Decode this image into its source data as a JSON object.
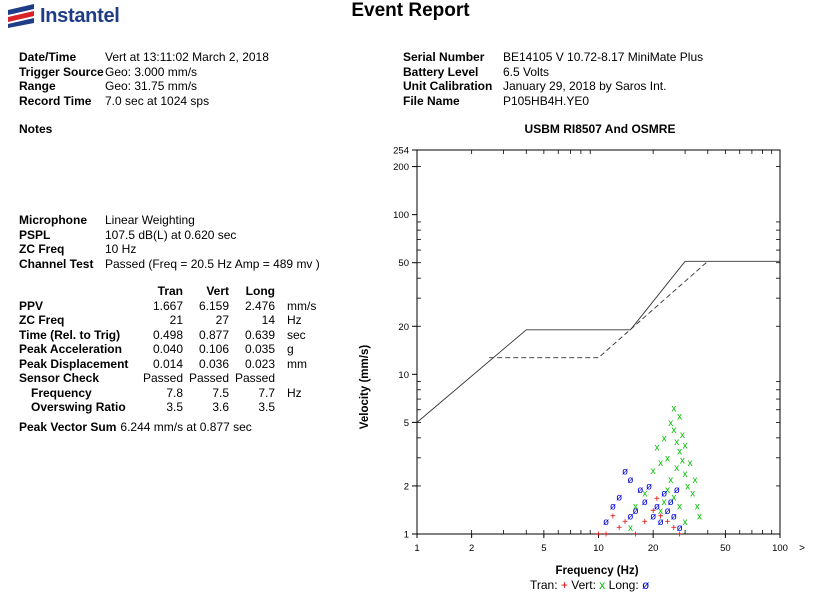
{
  "header": {
    "logo_text": "Instantel",
    "title": "Event Report"
  },
  "left_info": [
    {
      "label": "Date/Time",
      "value": "Vert at 13:11:02 March 2, 2018"
    },
    {
      "label": "Trigger Source",
      "value": "Geo: 3.000 mm/s"
    },
    {
      "label": "Range",
      "value": "Geo: 31.75 mm/s"
    },
    {
      "label": "Record Time",
      "value": "7.0 sec at 1024 sps"
    }
  ],
  "right_info": [
    {
      "label": "Serial Number",
      "value": "BE14105 V 10.72-8.17 MiniMate Plus"
    },
    {
      "label": "Battery Level",
      "value": "6.5 Volts"
    },
    {
      "label": "Unit Calibration",
      "value": "January 29, 2018 by Saros Int."
    },
    {
      "label": "File Name",
      "value": "P105HB4H.YE0"
    }
  ],
  "notes_label": "Notes",
  "microphone": [
    {
      "label": "Microphone",
      "value": "Linear Weighting"
    },
    {
      "label": "PSPL",
      "value": "107.5 dB(L) at 0.620 sec"
    },
    {
      "label": "ZC Freq",
      "value": "10 Hz"
    },
    {
      "label": "Channel Test",
      "value": "Passed (Freq = 20.5 Hz Amp = 489 mv )"
    }
  ],
  "measurements": {
    "headers": [
      "Tran",
      "Vert",
      "Long"
    ],
    "rows": [
      {
        "label": "PPV",
        "values": [
          "1.667",
          "6.159",
          "2.476"
        ],
        "unit": "mm/s",
        "indent": false
      },
      {
        "label": "ZC Freq",
        "values": [
          "21",
          "27",
          "14"
        ],
        "unit": "Hz",
        "indent": false
      },
      {
        "label": "Time (Rel. to Trig)",
        "values": [
          "0.498",
          "0.877",
          "0.639"
        ],
        "unit": "sec",
        "indent": false
      },
      {
        "label": "Peak Acceleration",
        "values": [
          "0.040",
          "0.106",
          "0.035"
        ],
        "unit": "g",
        "indent": false
      },
      {
        "label": "Peak Displacement",
        "values": [
          "0.014",
          "0.036",
          "0.023"
        ],
        "unit": "mm",
        "indent": false
      },
      {
        "label": "Sensor Check",
        "values": [
          "Passed",
          "Passed",
          "Passed"
        ],
        "unit": "",
        "indent": false
      },
      {
        "label": "Frequency",
        "values": [
          "7.8",
          "7.5",
          "7.7"
        ],
        "unit": "Hz",
        "indent": true
      },
      {
        "label": "Overswing Ratio",
        "values": [
          "3.5",
          "3.6",
          "3.5"
        ],
        "unit": "",
        "indent": true
      }
    ]
  },
  "peak_vector_sum": {
    "label": "Peak Vector Sum",
    "value": "6.244 mm/s at 0.877 sec"
  },
  "chart_data": {
    "type": "scatter",
    "title": "USBM RI8507 And OSMRE",
    "xlabel": "Frequency (Hz)",
    "ylabel": "Velocity (mm/s)",
    "xscale": "log",
    "yscale": "log",
    "xlim": [
      1,
      100
    ],
    "ylim": [
      1,
      254
    ],
    "x_ticks": [
      1,
      2,
      5,
      10,
      20,
      50,
      100
    ],
    "y_ticks": [
      1,
      2,
      5,
      10,
      20,
      50,
      100,
      200,
      254
    ],
    "x_axis_end_marker": ">",
    "grid": false,
    "legend_placement": "bottom",
    "legend": [
      {
        "name": "Tran:",
        "marker": "+",
        "color": "#e00000"
      },
      {
        "name": "Vert:",
        "marker": "x",
        "color": "#00c000"
      },
      {
        "name": "Long:",
        "marker": "ø",
        "color": "#0000e0"
      }
    ],
    "limit_curves": [
      {
        "style": "solid",
        "points": [
          [
            1,
            5
          ],
          [
            4,
            19
          ],
          [
            15,
            19
          ],
          [
            30,
            51
          ],
          [
            100,
            51
          ]
        ]
      },
      {
        "style": "dashed",
        "points": [
          [
            2.5,
            12.7
          ],
          [
            10,
            12.7
          ],
          [
            40,
            51
          ]
        ]
      }
    ],
    "series": [
      {
        "name": "Tran",
        "marker": "+",
        "color": "#e00000",
        "points": [
          [
            10,
            1
          ],
          [
            11,
            1
          ],
          [
            12,
            1.3
          ],
          [
            13,
            1.1
          ],
          [
            14,
            1.2
          ],
          [
            16,
            1
          ],
          [
            18,
            1.2
          ],
          [
            20,
            1.4
          ],
          [
            21,
            1.67
          ],
          [
            22,
            1.3
          ],
          [
            24,
            1.2
          ],
          [
            26,
            1.1
          ],
          [
            28,
            1
          ]
        ]
      },
      {
        "name": "Vert",
        "marker": "x",
        "color": "#00c000",
        "points": [
          [
            15,
            1.1
          ],
          [
            16,
            1.5
          ],
          [
            18,
            1.8
          ],
          [
            20,
            2.5
          ],
          [
            21,
            3.5
          ],
          [
            22,
            2.8
          ],
          [
            23,
            4
          ],
          [
            24,
            3
          ],
          [
            25,
            5
          ],
          [
            26,
            6.16
          ],
          [
            26,
            4.5
          ],
          [
            27,
            3.8
          ],
          [
            27,
            2.6
          ],
          [
            28,
            5.5
          ],
          [
            28,
            3.3
          ],
          [
            29,
            4.2
          ],
          [
            29,
            2.9
          ],
          [
            30,
            3.6
          ],
          [
            30,
            2.4
          ],
          [
            31,
            2
          ],
          [
            32,
            2.8
          ],
          [
            33,
            1.8
          ],
          [
            34,
            2.2
          ],
          [
            35,
            1.5
          ],
          [
            36,
            1.3
          ],
          [
            25,
            2.2
          ],
          [
            24,
            1.9
          ],
          [
            23,
            1.6
          ],
          [
            22,
            1.4
          ],
          [
            26,
            1.7
          ],
          [
            28,
            1.5
          ],
          [
            30,
            1.2
          ]
        ]
      },
      {
        "name": "Long",
        "marker": "ø",
        "color": "#0000e0",
        "points": [
          [
            11,
            1.2
          ],
          [
            12,
            1.5
          ],
          [
            13,
            1.7
          ],
          [
            14,
            2.48
          ],
          [
            15,
            2.2
          ],
          [
            15,
            1.3
          ],
          [
            16,
            1.4
          ],
          [
            17,
            1.9
          ],
          [
            18,
            1.6
          ],
          [
            19,
            2
          ],
          [
            20,
            1.3
          ],
          [
            21,
            1.5
          ],
          [
            22,
            1.2
          ],
          [
            23,
            1.8
          ],
          [
            24,
            1.4
          ],
          [
            25,
            1.6
          ],
          [
            26,
            1.3
          ],
          [
            27,
            1.9
          ],
          [
            28,
            1.1
          ]
        ]
      }
    ]
  }
}
